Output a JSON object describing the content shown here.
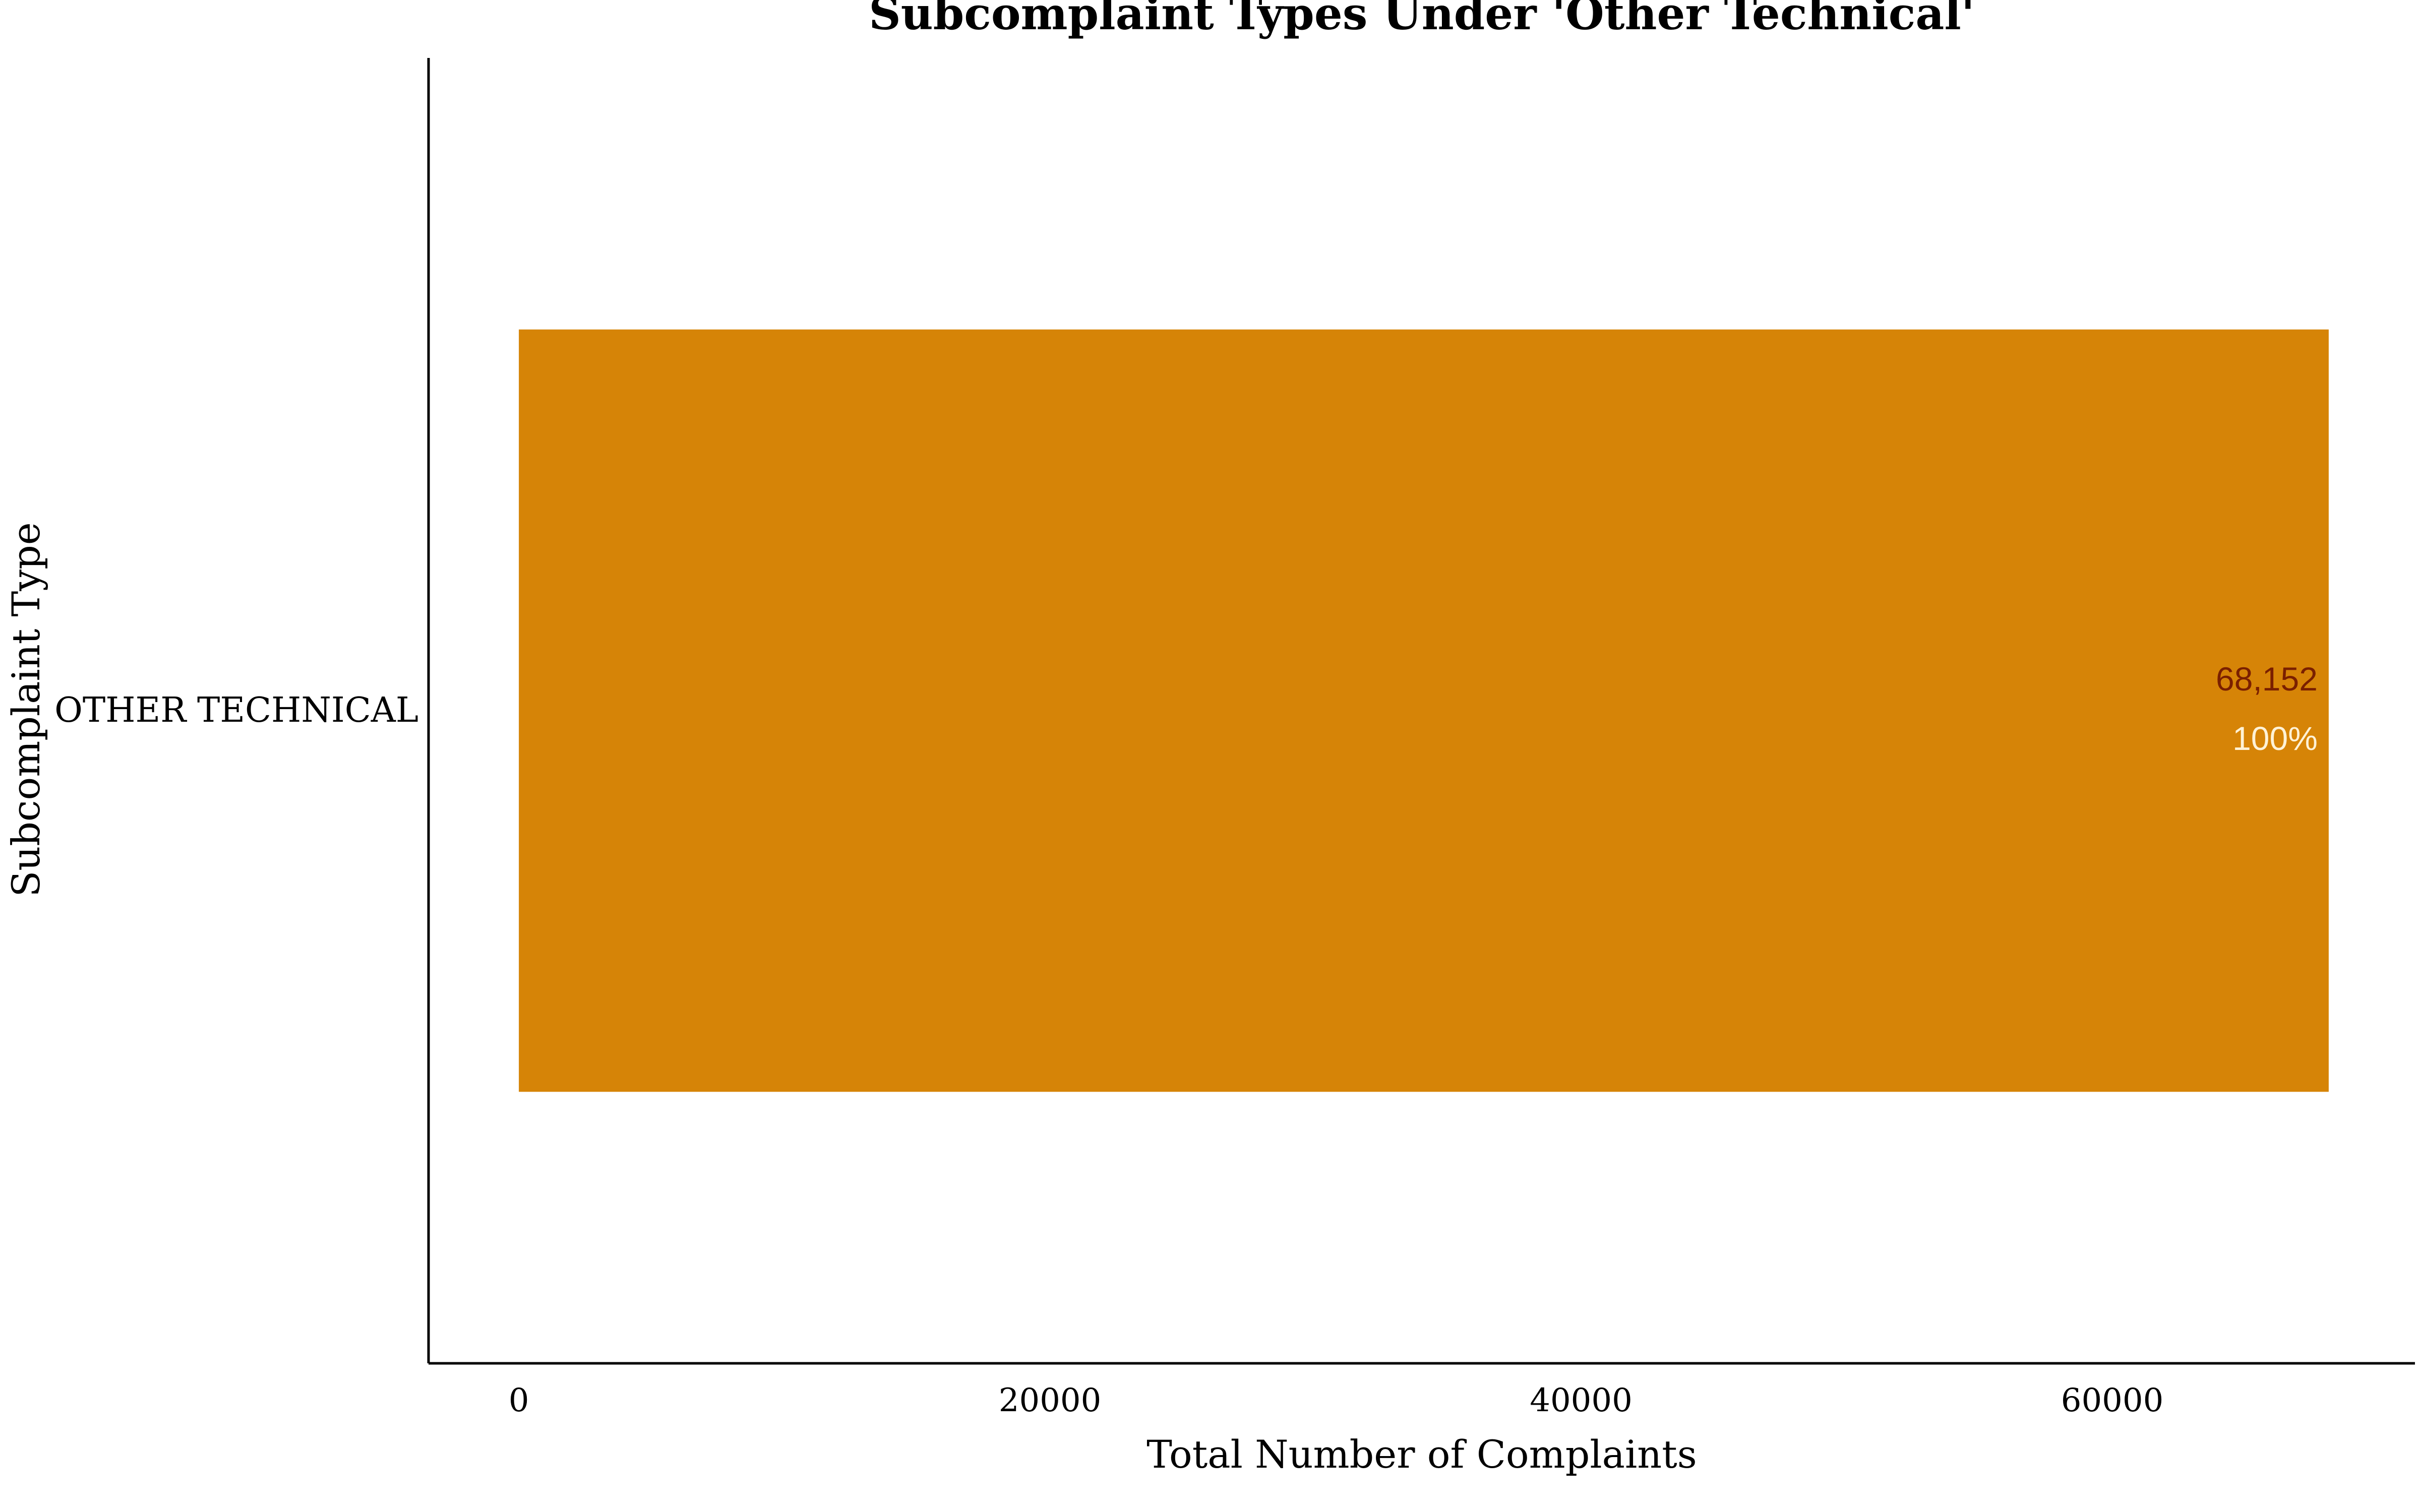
{
  "chart_data": {
    "type": "bar",
    "orientation": "horizontal",
    "title": "Subcomplaint Types Under 'Other Technical'",
    "xlabel": "Total Number of Complaints",
    "ylabel": "Subcomplaint Type",
    "categories": [
      "OTHER TECHNICAL"
    ],
    "values": [
      68152
    ],
    "value_labels": [
      "68,152"
    ],
    "percent_labels": [
      "100%"
    ],
    "xlim": [
      -3400,
      71400
    ],
    "x_ticks": [
      0,
      20000,
      40000,
      60000
    ],
    "x_tick_labels": [
      "0",
      "20000",
      "40000",
      "60000"
    ],
    "grid": false,
    "legend": "none",
    "colors": {
      "bar": "#D68407",
      "value_label": "#7A1F00",
      "percent_label": "#FFF2D6",
      "axis": "#000000",
      "text": "#000000"
    }
  }
}
